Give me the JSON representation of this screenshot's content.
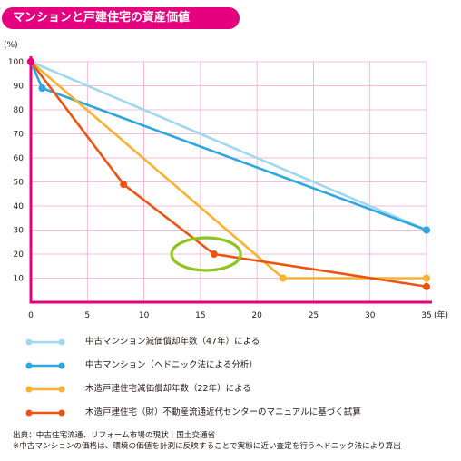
{
  "title": "マンションと戸建住宅の資産価値",
  "chart_data": {
    "type": "line",
    "y_unit_label": "(%)",
    "x_unit_label": "(年)",
    "xlim": [
      0,
      35
    ],
    "ylim": [
      0,
      100
    ],
    "x_ticks": [
      0,
      5,
      10,
      15,
      20,
      25,
      30,
      35
    ],
    "y_ticks": [
      10,
      20,
      30,
      40,
      50,
      60,
      70,
      80,
      90,
      100
    ],
    "grid": "vertical and horizontal gridlines",
    "series": [
      {
        "name": "中古マンション減価償却年数（47年）による",
        "color": "#a0d8ef",
        "points": [
          [
            0,
            100
          ],
          [
            35,
            30
          ]
        ]
      },
      {
        "name": "中古マンション（ヘドニック法による分析）",
        "color": "#2ea7e0",
        "points": [
          [
            0,
            100
          ],
          [
            1,
            89
          ],
          [
            35,
            30
          ]
        ]
      },
      {
        "name": "木造戸建住宅減価償却年数（22年）による",
        "color": "#f9b233",
        "points": [
          [
            0,
            100
          ],
          [
            22.3,
            10
          ],
          [
            35,
            10
          ]
        ]
      },
      {
        "name": "木造戸建住宅（財）不動産流通近代センターのマニュアルに基づく試算",
        "color": "#ea5514",
        "points": [
          [
            0,
            100
          ],
          [
            8.2,
            49
          ],
          [
            16.2,
            20
          ],
          [
            35,
            6.5
          ]
        ]
      }
    ],
    "annotation": {
      "type": "ellipse",
      "color": "#8fc31f",
      "center": [
        15.5,
        20
      ]
    }
  },
  "footer": {
    "source": "出典：中古住宅流通、リフォーム市場の現状｜国土交通省",
    "note": "※中古マンションの価格は、環境の価値を計測に反映することで実態に近い査定を行うヘドニック法により算出"
  }
}
